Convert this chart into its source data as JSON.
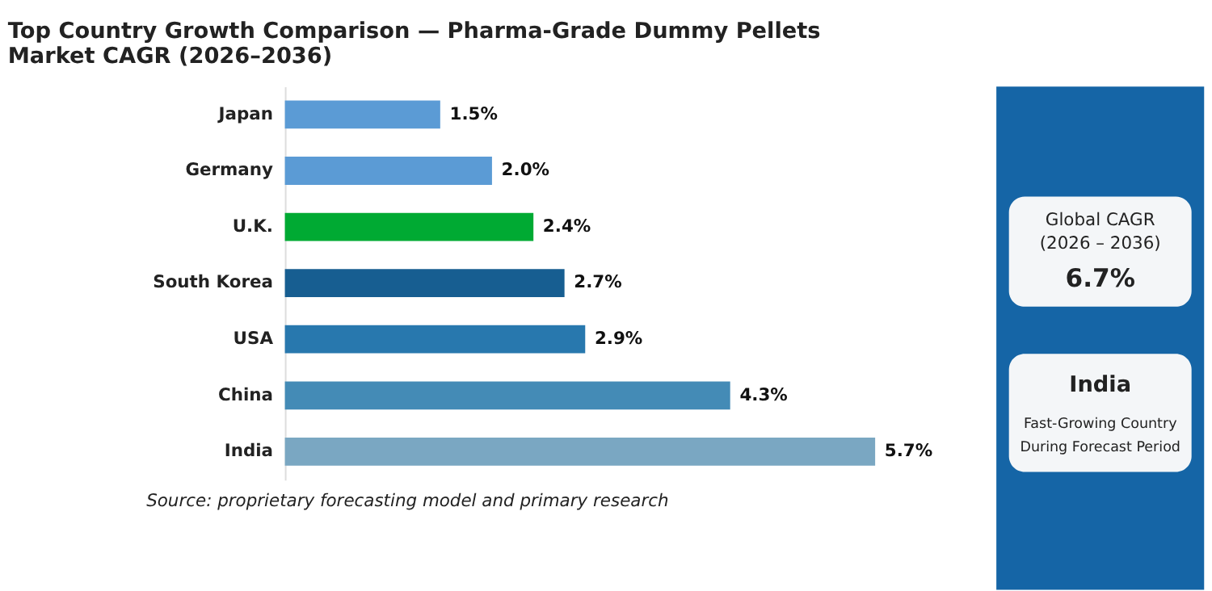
{
  "chart_data": [
    {
      "type": "bar",
      "orientation": "horizontal",
      "title": "Top Country Growth Comparison — Pharma-Grade Dummy Pellets Market CAGR (2026–2036)",
      "categories": [
        "Japan",
        "Germany",
        "U.K.",
        "South Korea",
        "USA",
        "China",
        "India"
      ],
      "values": [
        1.5,
        2.0,
        2.4,
        2.7,
        2.9,
        4.3,
        5.7
      ],
      "colors": [
        "#5b9bd5",
        "#5b9bd5",
        "#00aa33",
        "#175e91",
        "#2878ae",
        "#448bb6",
        "#7aa7c2"
      ],
      "value_labels": [
        "1.5%",
        "2.0%",
        "2.4%",
        "2.7%",
        "2.9%",
        "4.3%",
        "5.7%"
      ],
      "tick_labels": "y",
      "grid": false,
      "annotations": [
        "Source: proprietary forecasting model and primary research"
      ]
    },
    {
      "type": "other",
      "annotations": [
        "Global CAGR",
        "(2026 – 2036)",
        "6.7%",
        "India",
        "Fast-Growing Country",
        "During Forecast Period"
      ]
    }
  ]
}
